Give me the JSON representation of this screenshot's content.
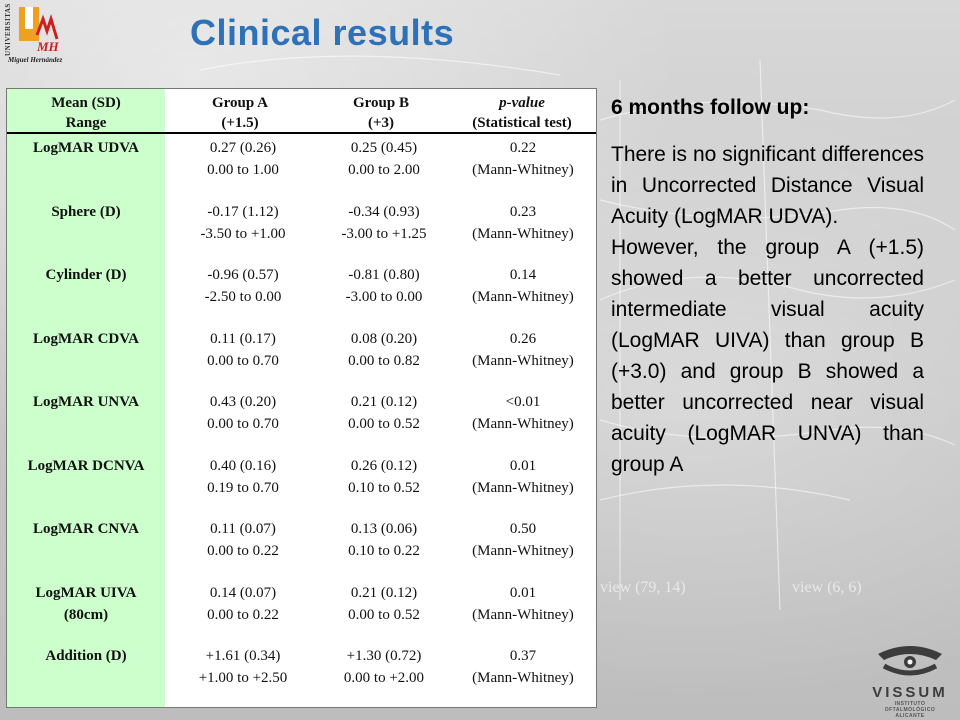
{
  "slide": {
    "title": "Clinical results"
  },
  "logo_umh": {
    "vertical_text": "UNIVERSITAS",
    "mark_text": "MH",
    "subtitle": "Miguel Hernández",
    "colors": {
      "orange": "#f0a020",
      "red": "#cc2020"
    }
  },
  "table": {
    "headers": [
      {
        "line1": "Mean (SD)",
        "line2": "Range"
      },
      {
        "line1": "Group A",
        "line2": "(+1.5)"
      },
      {
        "line1": "Group B",
        "line2": "(+3)"
      },
      {
        "line1": "p-value",
        "line2": "(Statistical test)"
      }
    ],
    "rows": [
      {
        "label": "LogMAR UDVA",
        "label2": "",
        "a_mean": "0.27 (0.26)",
        "a_range": "0.00 to 1.00",
        "b_mean": "0.25 (0.45)",
        "b_range": "0.00 to 2.00",
        "p": "0.22",
        "test": "(Mann-Whitney)"
      },
      {
        "label": "Sphere (D)",
        "label2": "",
        "a_mean": "-0.17 (1.12)",
        "a_range": "-3.50 to +1.00",
        "b_mean": "-0.34 (0.93)",
        "b_range": "-3.00 to +1.25",
        "p": "0.23",
        "test": "(Mann-Whitney)"
      },
      {
        "label": "Cylinder (D)",
        "label2": "",
        "a_mean": "-0.96 (0.57)",
        "a_range": "-2.50 to 0.00",
        "b_mean": "-0.81 (0.80)",
        "b_range": "-3.00 to 0.00",
        "p": "0.14",
        "test": "(Mann-Whitney)"
      },
      {
        "label": "LogMAR CDVA",
        "label2": "",
        "a_mean": "0.11 (0.17)",
        "a_range": "0.00 to 0.70",
        "b_mean": "0.08 (0.20)",
        "b_range": "0.00 to 0.82",
        "p": "0.26",
        "test": "(Mann-Whitney)"
      },
      {
        "label": "LogMAR UNVA",
        "label2": "",
        "a_mean": "0.43 (0.20)",
        "a_range": "0.00 to 0.70",
        "b_mean": "0.21 (0.12)",
        "b_range": "0.00 to 0.52",
        "p": "<0.01",
        "test": "(Mann-Whitney)"
      },
      {
        "label": "LogMAR DCNVA",
        "label2": "",
        "a_mean": "0.40 (0.16)",
        "a_range": "0.19 to 0.70",
        "b_mean": "0.26 (0.12)",
        "b_range": "0.10 to 0.52",
        "p": "0.01",
        "test": "(Mann-Whitney)"
      },
      {
        "label": "LogMAR CNVA",
        "label2": "",
        "a_mean": "0.11 (0.07)",
        "a_range": "0.00 to 0.22",
        "b_mean": "0.13 (0.06)",
        "b_range": "0.10 to 0.22",
        "p": "0.50",
        "test": "(Mann-Whitney)"
      },
      {
        "label": "LogMAR UIVA",
        "label2": "(80cm)",
        "a_mean": "0.14 (0.07)",
        "a_range": "0.00 to 0.22",
        "b_mean": "0.21 (0.12)",
        "b_range": "0.00 to 0.52",
        "p": "0.01",
        "test": "(Mann-Whitney)"
      },
      {
        "label": "Addition (D)",
        "label2": "",
        "a_mean": "+1.61 (0.34)",
        "a_range": "+1.00 to +2.50",
        "b_mean": "+1.30 (0.72)",
        "b_range": "0.00 to +2.00",
        "p": "0.37",
        "test": "(Mann-Whitney)"
      }
    ],
    "colors": {
      "label_column": "#ccffcc"
    }
  },
  "summary": {
    "heading": "6 months follow up:",
    "paragraph1": "There is no significant differences in Uncorrected Distance Visual Acuity (LogMAR UDVA).",
    "paragraph2": "However, the group A (+1.5) showed a better uncorrected intermediate visual acuity (LogMAR UIVA) than group B (+3.0) and group B showed a better uncorrected near visual acuity (LogMAR UNVA) than group A"
  },
  "background_watermarks": {
    "label_left": "view (79, 14)",
    "label_right": "view (6, 6)"
  },
  "logo_vissum": {
    "name": "VISSUM",
    "tagline_line1": "INSTITUTO",
    "tagline_line2": "OFTALMOLÓGICO",
    "tagline_line3": "ALICANTE"
  },
  "theme": {
    "title_color": "#2d72b8"
  }
}
